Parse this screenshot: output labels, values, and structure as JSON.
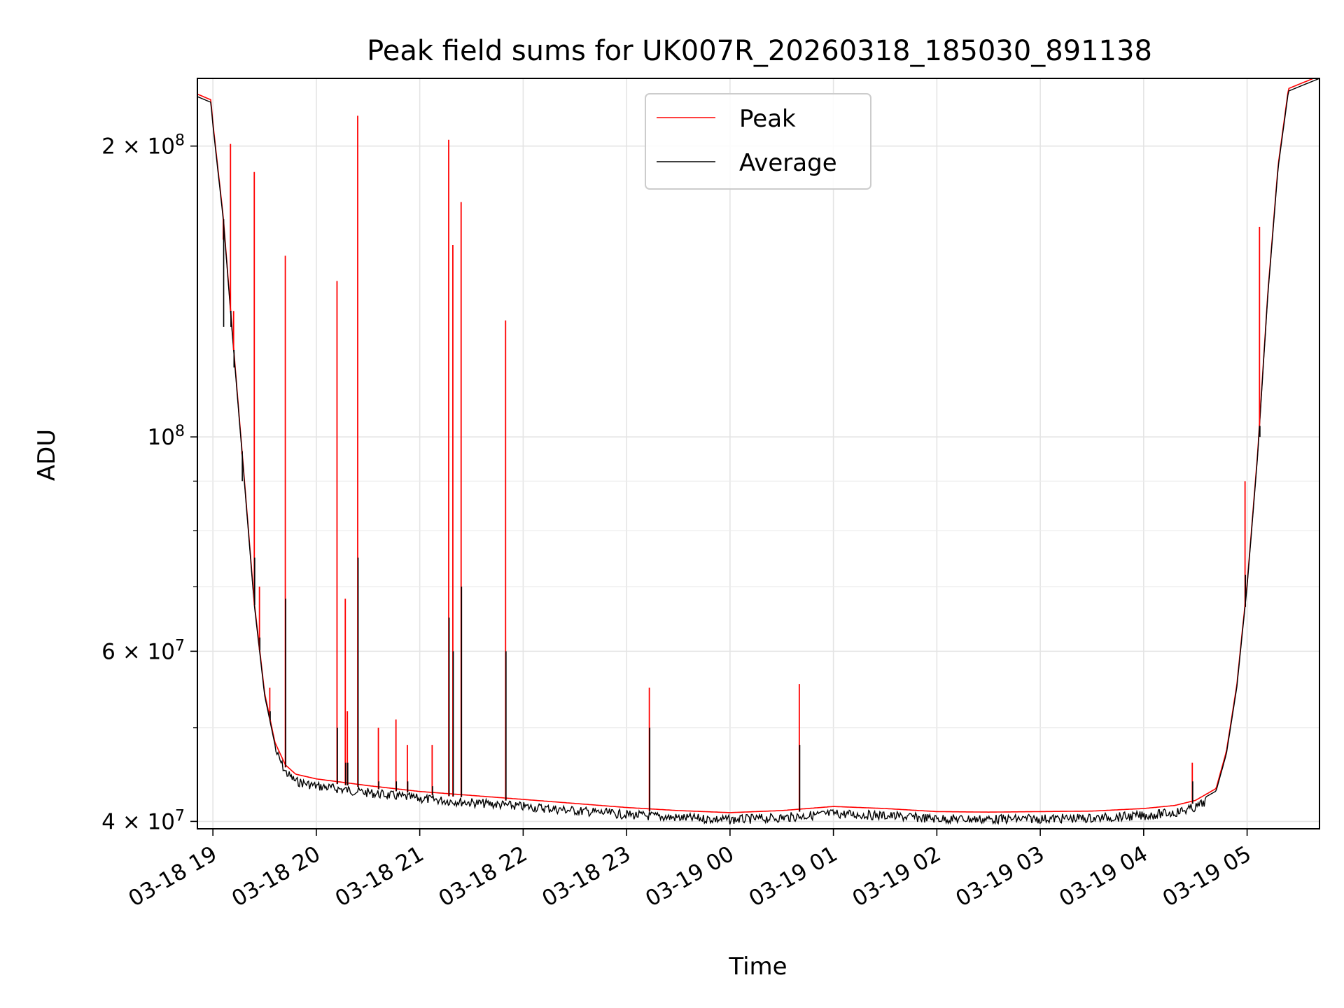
{
  "chart_data": {
    "type": "line",
    "title": "Peak field sums for UK007R_20260318_185030_891138",
    "xlabel": "Time",
    "ylabel": "ADU",
    "yscale": "log",
    "ylim": [
      39300000,
      235000000
    ],
    "xlim": [
      18.85,
      29.7
    ],
    "grid": true,
    "legend": {
      "placement": "top-center",
      "entries": [
        "Peak",
        "Average"
      ]
    },
    "x_ticks": [
      {
        "value": 19,
        "label": "03-18 19"
      },
      {
        "value": 20,
        "label": "03-18 20"
      },
      {
        "value": 21,
        "label": "03-18 21"
      },
      {
        "value": 22,
        "label": "03-18 22"
      },
      {
        "value": 23,
        "label": "03-18 23"
      },
      {
        "value": 24,
        "label": "03-19 00"
      },
      {
        "value": 25,
        "label": "03-19 01"
      },
      {
        "value": 26,
        "label": "03-19 02"
      },
      {
        "value": 27,
        "label": "03-19 03"
      },
      {
        "value": 28,
        "label": "03-19 04"
      },
      {
        "value": 29,
        "label": "03-19 05"
      }
    ],
    "y_major_ticks": [
      {
        "value": 40000000,
        "base": "4 × 10",
        "exp": "7"
      },
      {
        "value": 60000000,
        "base": "6 × 10",
        "exp": "7"
      },
      {
        "value": 100000000,
        "base": "10",
        "exp": "8"
      },
      {
        "value": 200000000,
        "base": "2 × 10",
        "exp": "8"
      }
    ],
    "y_minor_ticks": [
      50000000,
      70000000,
      80000000,
      90000000
    ],
    "series": [
      {
        "name": "Average",
        "color": "#000000",
        "x": [
          18.85,
          18.98,
          19.0,
          19.1,
          19.2,
          19.3,
          19.4,
          19.5,
          19.6,
          19.7,
          19.8,
          20.0,
          20.5,
          21.0,
          21.5,
          22.0,
          22.5,
          23.0,
          23.5,
          24.0,
          24.5,
          25.0,
          25.5,
          26.0,
          26.5,
          27.0,
          27.5,
          28.0,
          28.3,
          28.5,
          28.7,
          28.8,
          28.9,
          29.0,
          29.1,
          29.2,
          29.3,
          29.4,
          29.7
        ],
        "y": [
          225000000,
          222000000,
          210000000,
          168000000,
          123000000,
          91000000,
          67000000,
          54000000,
          48000000,
          45500000,
          44500000,
          44000000,
          43300000,
          42700000,
          42300000,
          41900000,
          41500000,
          41100000,
          40800000,
          40600000,
          40800000,
          41200000,
          41000000,
          40700000,
          40650000,
          40700000,
          40750000,
          41000000,
          41300000,
          41800000,
          43000000,
          47000000,
          55000000,
          70000000,
          95000000,
          140000000,
          190000000,
          228000000,
          235000000
        ]
      },
      {
        "name": "Peak",
        "color": "#ff0000",
        "spikes": [
          {
            "x": 19.1,
            "peak": 160000000,
            "avg": 130000000
          },
          {
            "x": 19.17,
            "peak": 201000000,
            "avg": 130000000
          },
          {
            "x": 19.2,
            "peak": 135000000,
            "avg": 118000000
          },
          {
            "x": 19.28,
            "peak": 96000000,
            "avg": 90000000
          },
          {
            "x": 19.4,
            "peak": 188000000,
            "avg": 75000000
          },
          {
            "x": 19.45,
            "peak": 70000000,
            "avg": 62000000
          },
          {
            "x": 19.55,
            "peak": 55000000,
            "avg": 52000000
          },
          {
            "x": 19.7,
            "peak": 154000000,
            "avg": 68000000
          },
          {
            "x": 20.2,
            "peak": 145000000,
            "avg": 50000000
          },
          {
            "x": 20.28,
            "peak": 68000000,
            "avg": 46000000
          },
          {
            "x": 20.3,
            "peak": 52000000,
            "avg": 46000000
          },
          {
            "x": 20.4,
            "peak": 215000000,
            "avg": 75000000
          },
          {
            "x": 20.6,
            "peak": 50000000,
            "avg": 44000000
          },
          {
            "x": 20.77,
            "peak": 51000000,
            "avg": 44000000
          },
          {
            "x": 20.88,
            "peak": 48000000,
            "avg": 44000000
          },
          {
            "x": 21.12,
            "peak": 48000000,
            "avg": 43500000
          },
          {
            "x": 21.28,
            "peak": 203000000,
            "avg": 65000000
          },
          {
            "x": 21.32,
            "peak": 158000000,
            "avg": 60000000
          },
          {
            "x": 21.4,
            "peak": 175000000,
            "avg": 70000000
          },
          {
            "x": 21.83,
            "peak": 132000000,
            "avg": 60000000
          },
          {
            "x": 23.22,
            "peak": 55000000,
            "avg": 50000000
          },
          {
            "x": 24.67,
            "peak": 55500000,
            "avg": 48000000
          },
          {
            "x": 28.47,
            "peak": 46000000,
            "avg": 44000000
          },
          {
            "x": 28.98,
            "peak": 90000000,
            "avg": 72000000
          },
          {
            "x": 29.12,
            "peak": 165000000,
            "avg": 100000000
          }
        ]
      }
    ]
  }
}
